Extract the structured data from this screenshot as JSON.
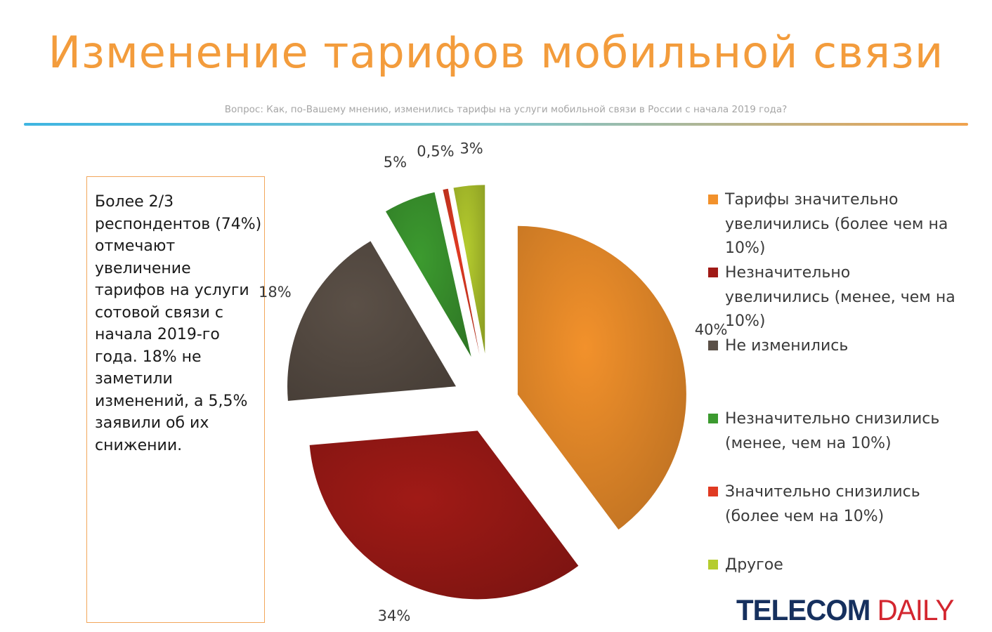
{
  "header": {
    "title": "Изменение тарифов мобильной связи",
    "question": "Вопрос: Как, по-Вашему мнению, изменились тарифы на услуги мобильной связи в России с начала 2019 года?"
  },
  "note": {
    "text": "Более 2/3 респондентов (74%) отмечают увеличение тарифов на услуги сотовой связи с начала 2019-го года.  18% не заметили изменений, а 5,5% заявили об их снижении."
  },
  "chart_data": {
    "type": "pie",
    "title": "",
    "slices": [
      {
        "label": "Тарифы значительно увеличились (более чем на 10%)",
        "value": 40,
        "display": "40%",
        "color": "#f2912b"
      },
      {
        "label": "Незначительно увеличились (менее, чем на 10%)",
        "value": 34,
        "display": "34%",
        "color": "#a01a16"
      },
      {
        "label": "Не изменились",
        "value": 18,
        "display": "18%",
        "color": "#5b5047"
      },
      {
        "label": "Незначительно снизились (менее, чем на 10%)",
        "value": 5,
        "display": "5%",
        "color": "#3c9a2f"
      },
      {
        "label": "Значительно снизились (более чем на 10%)",
        "value": 0.5,
        "display": "0,5%",
        "color": "#e03a22"
      },
      {
        "label": "Другое",
        "value": 3,
        "display": "3%",
        "color": "#b5cc2e"
      }
    ],
    "legend_position": "right"
  },
  "logo": {
    "part1": "TELECOM",
    "part2": " DAILY"
  }
}
